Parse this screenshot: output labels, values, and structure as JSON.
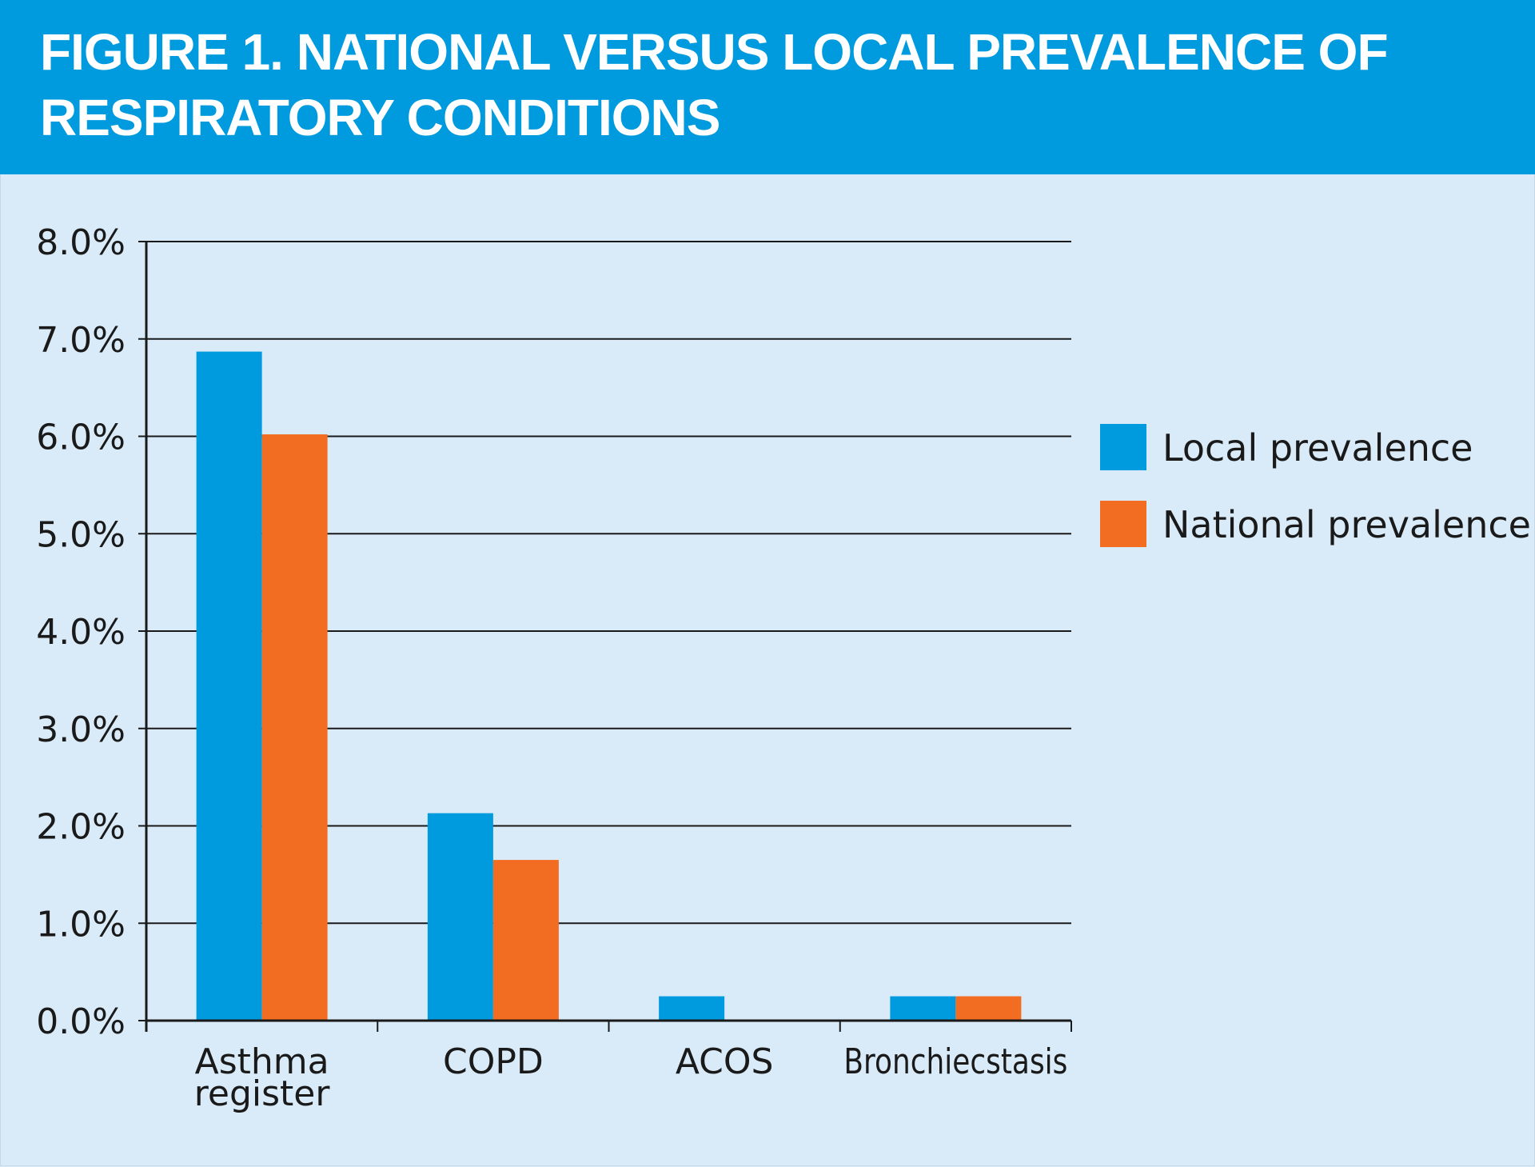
{
  "header": {
    "title_line1": "FIGURE 1. NATIONAL VERSUS LOCAL PREVALENCE OF",
    "title_line2": "RESPIRATORY CONDITIONS"
  },
  "colors": {
    "header_bg": "#009ade",
    "panel_bg": "#d9ebf8",
    "local": "#009ade",
    "national": "#f26c21",
    "grid": "#1a1a1a"
  },
  "chart_data": {
    "type": "bar",
    "title": "FIGURE 1. NATIONAL VERSUS LOCAL PREVALENCE OF RESPIRATORY CONDITIONS",
    "categories": [
      [
        "Asthma",
        "register"
      ],
      [
        "COPD"
      ],
      [
        "ACOS"
      ],
      [
        "Bronchiecstasis"
      ]
    ],
    "series": [
      {
        "name": "Local prevalence",
        "color": "#009ade",
        "values": [
          6.87,
          2.13,
          0.25,
          0.25
        ]
      },
      {
        "name": "National prevalence",
        "color": "#f26c21",
        "values": [
          6.02,
          1.65,
          0.0,
          0.25
        ]
      }
    ],
    "y_ticks": [
      "0.0%",
      "1.0%",
      "2.0%",
      "3.0%",
      "4.0%",
      "5.0%",
      "6.0%",
      "7.0%",
      "8.0%"
    ],
    "ylim": [
      0,
      8
    ],
    "ylabel": "",
    "xlabel": "",
    "grid": true,
    "legend_position": "right"
  }
}
